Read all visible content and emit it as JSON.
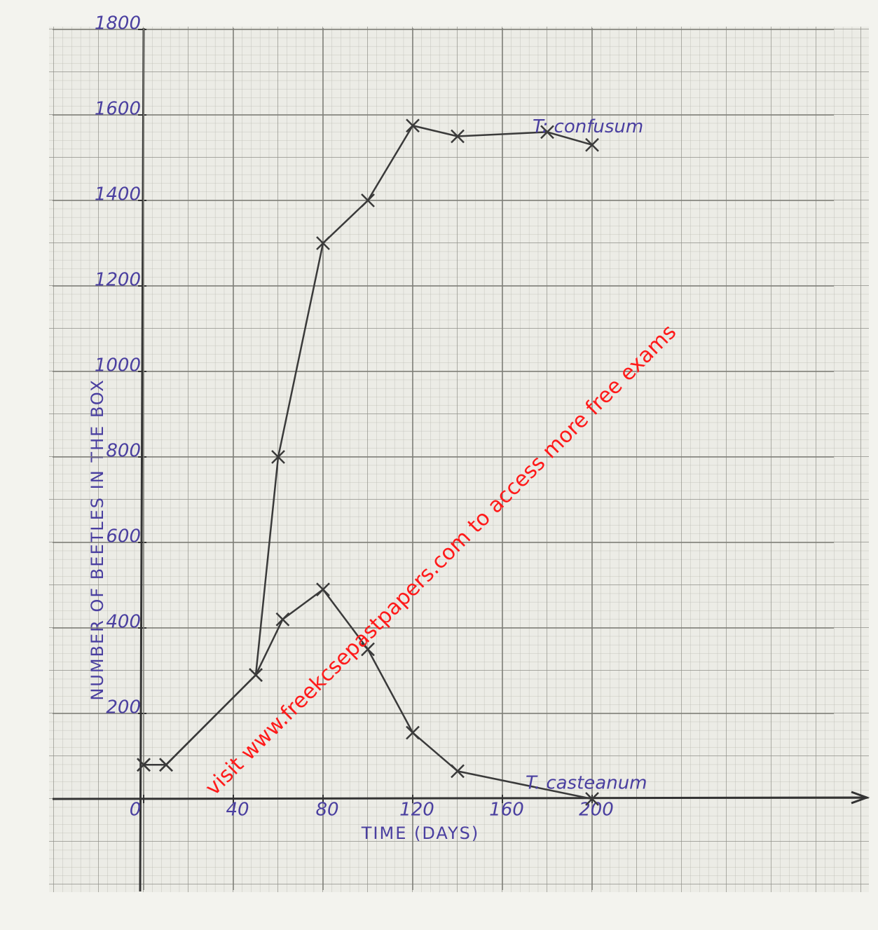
{
  "chart_data": {
    "type": "line",
    "x_label": "TIME (DAYS)",
    "y_label": "NUMBER OF BEETLES IN THE BOX",
    "xlim": [
      0,
      200
    ],
    "xticks": [
      0,
      40,
      80,
      120,
      160,
      200
    ],
    "ylim": [
      0,
      1800
    ],
    "yticks": [
      200,
      400,
      600,
      800,
      1000,
      1200,
      1400,
      1600,
      1800
    ],
    "grid": true,
    "series": [
      {
        "name": "T: confusum",
        "color": "#3a3a3a",
        "x": [
          0,
          10,
          50,
          60,
          80,
          100,
          120,
          140,
          180,
          200
        ],
        "values": [
          80,
          80,
          290,
          800,
          1300,
          1400,
          1575,
          1550,
          1560,
          1530
        ]
      },
      {
        "name": "T. casteanum",
        "color": "#3a3a3a",
        "x": [
          0,
          10,
          50,
          62,
          80,
          100,
          120,
          140,
          200
        ],
        "values": [
          80,
          80,
          290,
          420,
          490,
          350,
          155,
          65,
          0
        ]
      }
    ],
    "annotation": "visit www.freekcsepastpapers.com to access more free exams"
  }
}
